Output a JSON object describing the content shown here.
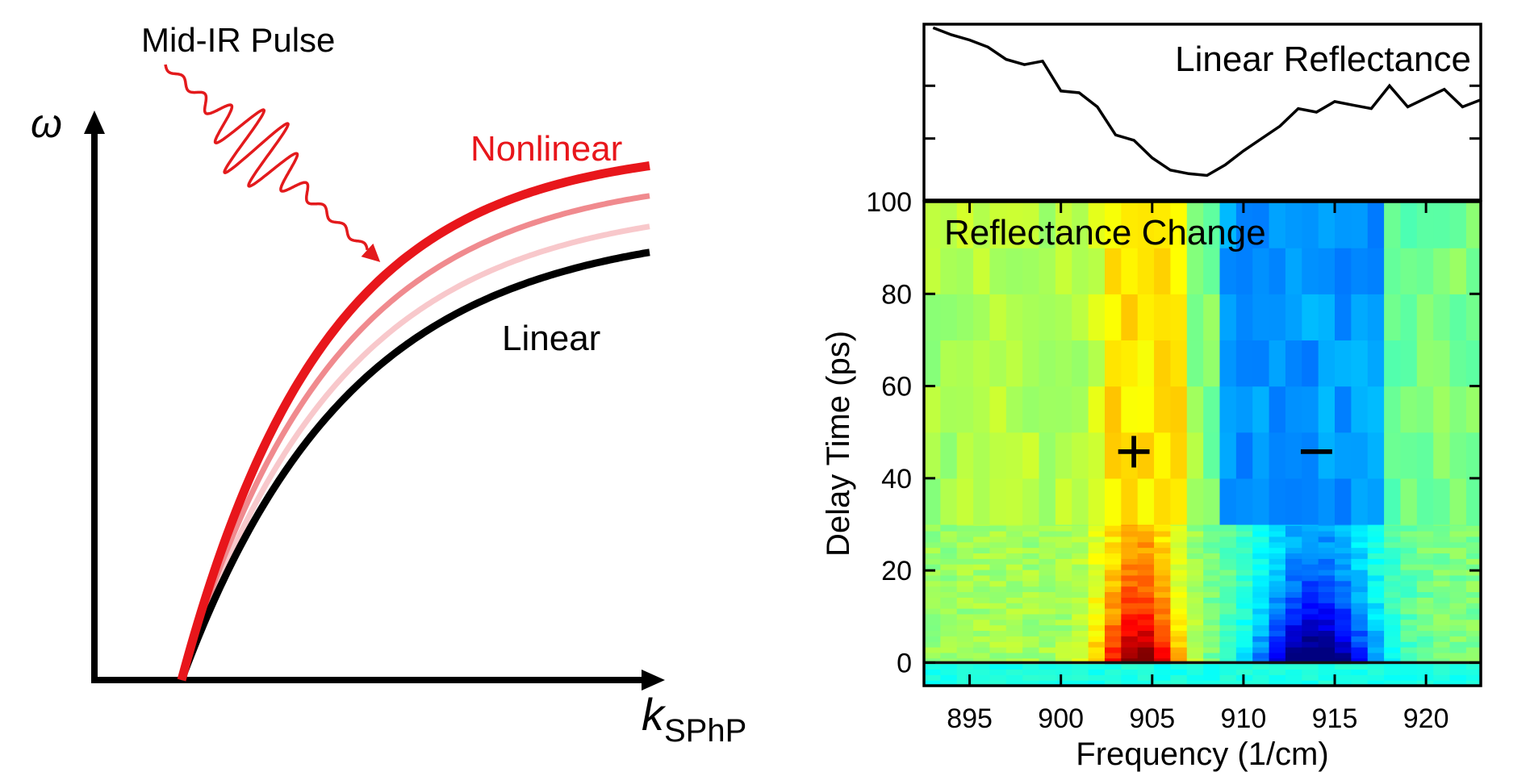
{
  "left_panel": {
    "y_axis_symbol": "ω",
    "x_axis_symbol": "k",
    "x_axis_subscript": "SPhP",
    "pulse_label": "Mid-IR Pulse",
    "nonlinear_label": "Nonlinear",
    "linear_label": "Linear",
    "colors": {
      "nonlinear": "#e8161b",
      "mid": "#f08a8e",
      "light": "#f8c8cb",
      "linear": "#000000",
      "pulse": "#e31a1c"
    }
  },
  "chart_data": [
    {
      "type": "line",
      "title": "Linear Reflectance",
      "x": [
        893,
        894,
        895,
        896,
        897,
        898,
        899,
        900,
        901,
        902,
        903,
        904,
        905,
        906,
        907,
        908,
        909,
        910,
        911,
        912,
        913,
        914,
        915,
        916,
        917,
        918,
        919,
        920,
        921,
        922,
        923
      ],
      "y": [
        0.98,
        0.94,
        0.91,
        0.87,
        0.8,
        0.77,
        0.79,
        0.62,
        0.61,
        0.53,
        0.37,
        0.34,
        0.24,
        0.17,
        0.15,
        0.14,
        0.2,
        0.28,
        0.35,
        0.42,
        0.52,
        0.5,
        0.56,
        0.54,
        0.52,
        0.65,
        0.53,
        0.58,
        0.63,
        0.53,
        0.57
      ],
      "xlim": [
        892.5,
        923
      ],
      "ylim": [
        0,
        1
      ]
    },
    {
      "type": "heatmap",
      "title": "Reflectance Change",
      "xlabel": "Frequency (1/cm)",
      "ylabel": "Delay Time (ps)",
      "xticks": [
        895,
        900,
        905,
        910,
        915,
        920
      ],
      "yticks": [
        0,
        20,
        40,
        60,
        80,
        100
      ],
      "xlim": [
        892.5,
        923
      ],
      "ylim": [
        -5,
        100
      ],
      "annotations": [
        {
          "text": "+",
          "x": 904,
          "y": 46
        },
        {
          "text": "−",
          "x": 914,
          "y": 46
        }
      ]
    }
  ]
}
